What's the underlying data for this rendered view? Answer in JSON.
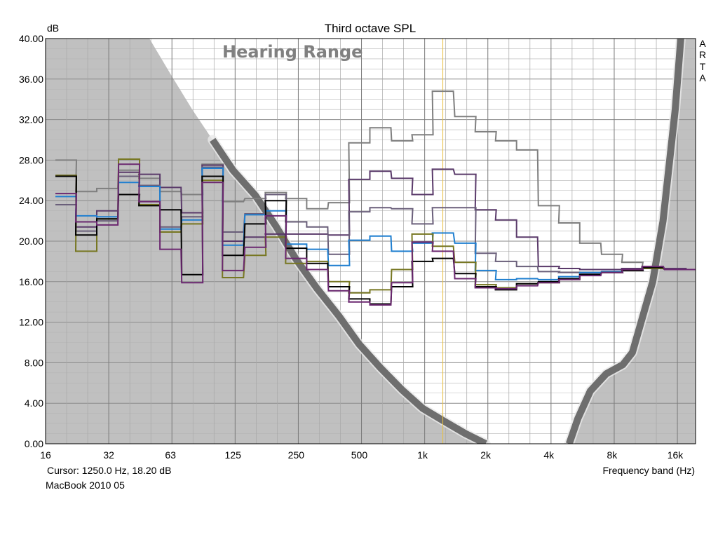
{
  "chart_data": {
    "type": "line",
    "title": "Third octave SPL",
    "ylabel": "dB",
    "xlabel": "Frequency band (Hz)",
    "side_label": [
      "A",
      "R",
      "T",
      "A"
    ],
    "overlay_label": "Hearing Range",
    "cursor_text": "Cursor:  1250.0 Hz, 18.20 dB",
    "device_label": "MacBook 2010 05",
    "cursor_freq": 1250,
    "x_scale": "log",
    "xlim": [
      16,
      20000
    ],
    "ylim": [
      0,
      40
    ],
    "y_ticks": [
      "0.00",
      "4.00",
      "8.00",
      "12.00",
      "16.00",
      "20.00",
      "24.00",
      "28.00",
      "32.00",
      "36.00",
      "40.00"
    ],
    "x_ticks": [
      {
        "f": 16,
        "label": "16"
      },
      {
        "f": 32,
        "label": "32"
      },
      {
        "f": 63,
        "label": "63"
      },
      {
        "f": 125,
        "label": "125"
      },
      {
        "f": 250,
        "label": "250"
      },
      {
        "f": 500,
        "label": "500"
      },
      {
        "f": 1000,
        "label": "1k"
      },
      {
        "f": 2000,
        "label": "2k"
      },
      {
        "f": 4000,
        "label": "4k"
      },
      {
        "f": 8000,
        "label": "8k"
      },
      {
        "f": 16000,
        "label": "16k"
      }
    ],
    "bands": [
      20,
      25,
      31.5,
      40,
      50,
      63,
      80,
      100,
      125,
      160,
      200,
      250,
      315,
      400,
      500,
      630,
      800,
      1000,
      1250,
      1600,
      2000,
      2500,
      3150,
      4000,
      5000,
      6300,
      8000,
      10000,
      12500,
      16000,
      20000
    ],
    "hearing_left": [
      [
        16,
        40
      ],
      [
        50,
        40
      ],
      [
        63,
        36.5
      ],
      [
        80,
        33
      ],
      [
        100,
        30
      ],
      [
        125,
        27
      ],
      [
        160,
        24.5
      ],
      [
        200,
        21.5
      ],
      [
        250,
        18.2
      ],
      [
        315,
        15.3
      ],
      [
        400,
        12.6
      ],
      [
        500,
        9.8
      ],
      [
        630,
        7.5
      ],
      [
        800,
        5.3
      ],
      [
        1000,
        3.5
      ],
      [
        1250,
        2.3
      ],
      [
        1600,
        1.0
      ],
      [
        2000,
        0
      ]
    ],
    "hearing_right": [
      [
        5000,
        0
      ],
      [
        5500,
        2.5
      ],
      [
        6300,
        5.2
      ],
      [
        7500,
        6.9
      ],
      [
        9000,
        7.8
      ],
      [
        10000,
        9.0
      ],
      [
        11000,
        12.0
      ],
      [
        12500,
        16.0
      ],
      [
        14000,
        22.0
      ],
      [
        16000,
        33.0
      ],
      [
        17000,
        40
      ]
    ],
    "grid": true,
    "series": [
      {
        "color": "#7f7f7f",
        "values": [
          28.0,
          24.9,
          25.2,
          27.0,
          26.2,
          24.9,
          24.6,
          27.6,
          23.9,
          24.2,
          24.8,
          24.2,
          23.2,
          23.8,
          29.7,
          31.2,
          29.9,
          30.5,
          34.8,
          32.3,
          30.8,
          29.9,
          29.0,
          23.5,
          21.8,
          19.8,
          18.7,
          17.9,
          17.5,
          17.2,
          17.2
        ]
      },
      {
        "color": "#5a3a6a",
        "values": [
          26.5,
          21.4,
          23.0,
          26.8,
          26.6,
          25.3,
          22.8,
          27.5,
          20.0,
          20.4,
          20.7,
          20.7,
          20.7,
          20.6,
          26.1,
          26.9,
          26.2,
          24.6,
          27.1,
          26.6,
          23.1,
          22.1,
          20.4,
          17.5,
          17.3,
          17.2,
          17.2,
          17.3,
          17.4,
          17.3,
          17.2
        ]
      },
      {
        "color": "#6a5f7a",
        "values": [
          23.6,
          21.0,
          22.0,
          26.4,
          25.5,
          21.4,
          22.4,
          27.3,
          20.9,
          22.7,
          24.6,
          21.9,
          21.4,
          18.7,
          22.9,
          23.3,
          23.2,
          21.7,
          23.3,
          23.3,
          18.8,
          18.0,
          17.5,
          17.0,
          16.9,
          16.8,
          16.9,
          17.1,
          17.3,
          17.2,
          17.2
        ]
      },
      {
        "color": "#1f7fd0",
        "values": [
          24.4,
          22.5,
          22.4,
          25.8,
          25.4,
          21.2,
          22.1,
          27.2,
          19.6,
          22.6,
          23.0,
          19.7,
          19.2,
          17.6,
          20.1,
          20.5,
          19.0,
          19.8,
          20.8,
          19.8,
          17.1,
          16.2,
          16.3,
          16.2,
          16.5,
          16.9,
          17.0,
          17.2,
          17.3,
          17.2,
          17.2
        ]
      },
      {
        "color": "#777722",
        "values": [
          26.5,
          19.0,
          22.2,
          28.1,
          23.6,
          20.9,
          21.7,
          26.0,
          16.4,
          18.6,
          20.4,
          17.8,
          18.0,
          16.0,
          14.9,
          15.2,
          17.2,
          20.7,
          19.5,
          17.9,
          15.7,
          15.4,
          15.8,
          15.9,
          16.2,
          16.7,
          16.9,
          17.1,
          17.3,
          17.2,
          17.2
        ]
      },
      {
        "color": "#000000",
        "values": [
          26.4,
          20.6,
          22.2,
          24.6,
          23.5,
          23.1,
          16.7,
          26.4,
          18.6,
          21.7,
          24.0,
          19.3,
          17.8,
          15.5,
          14.3,
          13.8,
          15.5,
          18.0,
          18.3,
          16.8,
          15.5,
          15.2,
          15.8,
          16.0,
          16.3,
          16.7,
          16.9,
          17.1,
          17.4,
          17.2,
          17.2
        ]
      },
      {
        "color": "#6b2870",
        "values": [
          24.7,
          21.9,
          21.6,
          27.6,
          23.9,
          19.2,
          15.9,
          25.8,
          17.1,
          19.4,
          22.5,
          18.3,
          17.2,
          15.1,
          14.0,
          13.7,
          15.9,
          19.9,
          19.0,
          16.3,
          15.4,
          15.3,
          15.6,
          15.9,
          16.2,
          16.6,
          16.9,
          17.2,
          17.5,
          17.2,
          17.2
        ]
      }
    ]
  }
}
